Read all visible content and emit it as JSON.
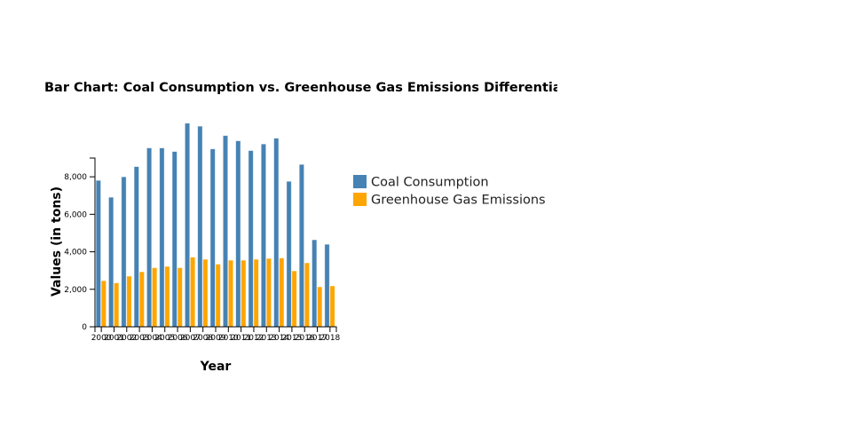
{
  "chart_data": {
    "type": "bar",
    "title": "Bar Chart: Coal Consumption vs. Greenhouse Gas Emissions Differentiated",
    "xlabel": "Year",
    "ylabel": "Values (in tons)",
    "ylim": [
      0,
      9000
    ],
    "y_ticks": [
      0,
      2000,
      4000,
      6000,
      8000
    ],
    "y_tick_labels": [
      "0",
      "2,000",
      "4,000",
      "6,000",
      "8,000"
    ],
    "grid": false,
    "legend_position": "right",
    "categories": [
      "2000",
      "2001",
      "2002",
      "2003",
      "2004",
      "2005",
      "2006",
      "2007",
      "2008",
      "2009",
      "2010",
      "2011",
      "2012",
      "2013",
      "2014",
      "2015",
      "2016",
      "2017",
      "2018"
    ],
    "series": [
      {
        "name": "Coal Consumption",
        "color": "#4682b4",
        "values": [
          7810,
          6910,
          8000,
          8545,
          9540,
          9540,
          9350,
          10860,
          10700,
          9490,
          10200,
          9920,
          9400,
          9750,
          10060,
          7760,
          8660,
          4640,
          4400
        ]
      },
      {
        "name": "Greenhouse Gas Emissions",
        "color": "#ffa500",
        "values": [
          2460,
          2340,
          2700,
          2935,
          3150,
          3220,
          3150,
          3715,
          3600,
          3340,
          3550,
          3550,
          3600,
          3645,
          3670,
          2980,
          3410,
          2130,
          2180
        ]
      }
    ]
  }
}
